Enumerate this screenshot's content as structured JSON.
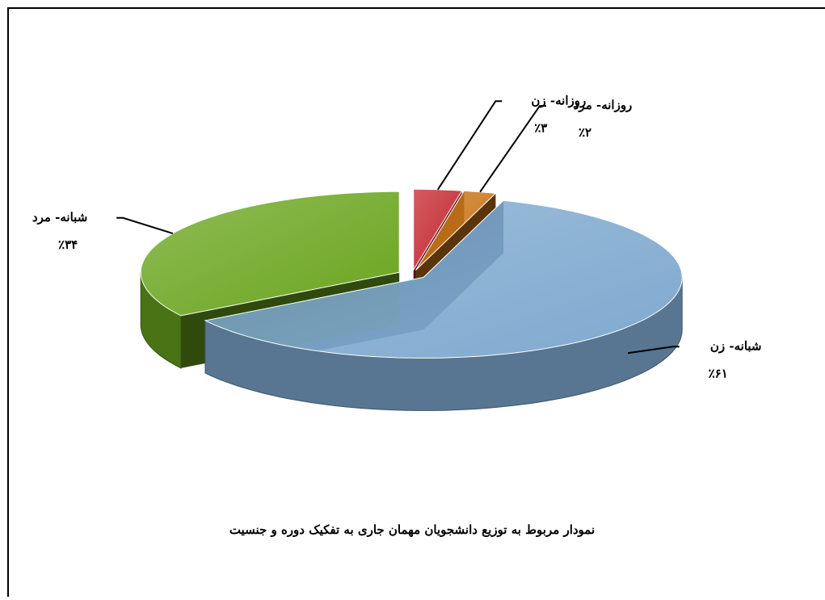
{
  "chart_data": {
    "type": "pie",
    "title": "نمودار مربوط به توزیع دانشجویان مهمان جاری به تفکیک دوره و جنسیت",
    "categories": [
      "روزانه- زن",
      "روزانه- مرد",
      "شبانه- زن",
      "شبانه- مرد"
    ],
    "values": [
      3,
      2,
      61,
      34
    ],
    "value_labels": [
      "٪۳",
      "٪۲",
      "٪۶۱",
      "٪۳۴"
    ],
    "colors": [
      "#c4262e",
      "#c87519",
      "#7ea9cf",
      "#6aa51e"
    ]
  }
}
